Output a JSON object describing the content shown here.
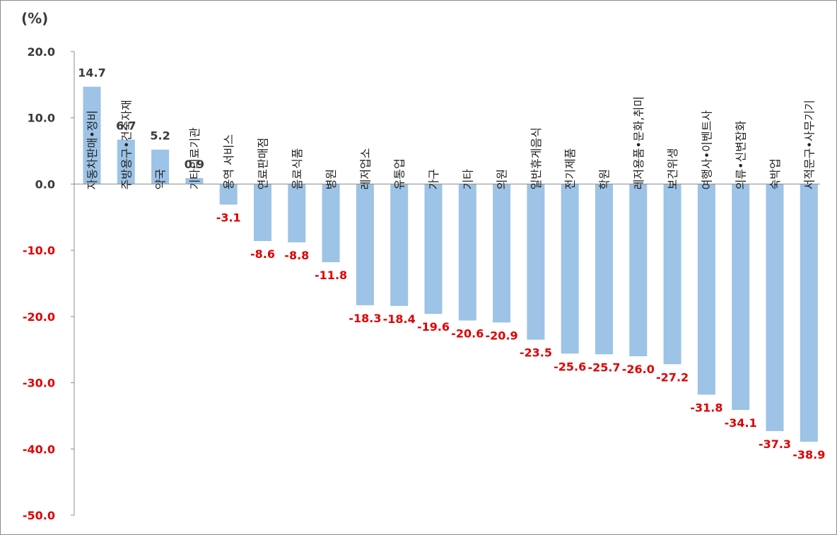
{
  "chart_data": {
    "type": "bar",
    "unit_label": "(%)",
    "categories": [
      "자동차판매•정비",
      "주방용구•건축자재",
      "약국",
      "기타의료기관",
      "용역 서비스",
      "연료판매점",
      "음료식품",
      "병원",
      "레저업소",
      "유통업",
      "가구",
      "기타",
      "의원",
      "일반휴게음식",
      "전기제품",
      "학원",
      "레저용품•문화,취미",
      "보건위생",
      "여행사•이벤트사",
      "의류•신변잡화",
      "숙박업",
      "서적문구•사무기기"
    ],
    "values": [
      14.7,
      6.7,
      5.2,
      0.9,
      -3.1,
      -8.6,
      -8.8,
      -11.8,
      -18.3,
      -18.4,
      -19.6,
      -20.6,
      -20.9,
      -23.5,
      -25.6,
      -25.7,
      -26.0,
      -27.2,
      -31.8,
      -34.1,
      -37.3,
      -38.9
    ],
    "value_labels": [
      "14.7",
      "6.7",
      "5.2",
      "0.9",
      "-3.1",
      "-8.6",
      "-8.8",
      "-11.8",
      "-18.3",
      "-18.4",
      "-19.6",
      "-20.6",
      "-20.9",
      "-23.5",
      "-25.6",
      "-25.7",
      "-26.0",
      "-27.2",
      "-31.8",
      "-34.1",
      "-37.3",
      "-38.9"
    ],
    "y_ticks": [
      "20.0",
      "10.0",
      "0.0",
      "-10.0",
      "-20.0",
      "-30.0",
      "-40.0",
      "-50.0"
    ],
    "ylim": [
      -50,
      20
    ],
    "grid": false,
    "legend": "none",
    "colors": {
      "bar": "#9dc3e6",
      "positive_text": "#3a3a3a",
      "negative_text": "#e00000",
      "axis": "#8c8c8c"
    }
  }
}
